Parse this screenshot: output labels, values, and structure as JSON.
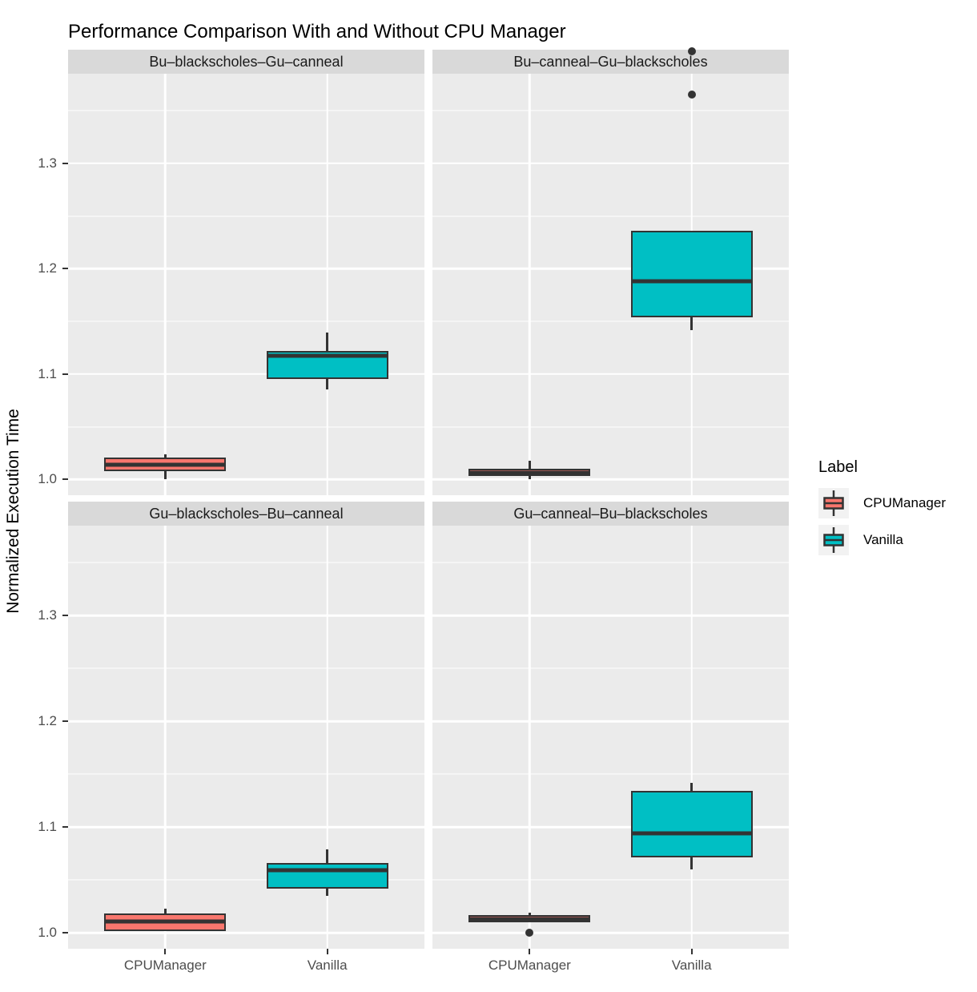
{
  "title": "Performance Comparison With and Without CPU Manager",
  "y_axis_title": "Normalized Execution Time",
  "legend": {
    "title": "Label",
    "items": [
      {
        "label": "CPUManager"
      },
      {
        "label": "Vanilla"
      }
    ]
  },
  "colors": {
    "cpumanager": "#F8766D",
    "vanilla": "#00BFC4",
    "panel_bg": "#EBEBEB",
    "strip_bg": "#D9D9D9",
    "gridline": "#FFFFFF",
    "box_border": "#333333",
    "axis_text": "#4D4D4D",
    "legend_key_bg": "#F2F2F2"
  },
  "chart_data": {
    "type": "boxplot",
    "title": "Performance Comparison With and Without CPU Manager",
    "ylabel": "Normalized Execution Time",
    "xlabel": "",
    "x_categories": [
      "CPUManager",
      "Vanilla"
    ],
    "y_ticks": [
      1.0,
      1.1,
      1.2,
      1.3
    ],
    "y_minor_ticks": [
      1.05,
      1.15,
      1.25,
      1.35
    ],
    "ylim": [
      0.985,
      1.385
    ],
    "grid": "on",
    "legend_position": "right",
    "series": [
      {
        "name": "CPUManager",
        "color": "#F8766D"
      },
      {
        "name": "Vanilla",
        "color": "#00BFC4"
      }
    ],
    "facets": [
      {
        "label": "Bu–blackscholes–Gu–canneal",
        "boxes": [
          {
            "group": "CPUManager",
            "whisker_low": 1.0,
            "q1": 1.008,
            "median": 1.014,
            "q3": 1.021,
            "whisker_high": 1.024,
            "outliers": []
          },
          {
            "group": "Vanilla",
            "whisker_low": 1.085,
            "q1": 1.095,
            "median": 1.117,
            "q3": 1.122,
            "whisker_high": 1.139,
            "outliers": []
          }
        ]
      },
      {
        "label": "Bu–canneal–Gu–blackscholes",
        "boxes": [
          {
            "group": "CPUManager",
            "whisker_low": 1.0,
            "q1": 1.003,
            "median": 1.006,
            "q3": 1.01,
            "whisker_high": 1.018,
            "outliers": []
          },
          {
            "group": "Vanilla",
            "whisker_low": 1.142,
            "q1": 1.154,
            "median": 1.188,
            "q3": 1.236,
            "whisker_high": 1.236,
            "outliers": [
              1.365,
              1.406
            ]
          }
        ]
      },
      {
        "label": "Gu–blackscholes–Bu–canneal",
        "boxes": [
          {
            "group": "CPUManager",
            "whisker_low": 1.002,
            "q1": 1.002,
            "median": 1.011,
            "q3": 1.018,
            "whisker_high": 1.023,
            "outliers": []
          },
          {
            "group": "Vanilla",
            "whisker_low": 1.035,
            "q1": 1.042,
            "median": 1.059,
            "q3": 1.066,
            "whisker_high": 1.079,
            "outliers": []
          }
        ]
      },
      {
        "label": "Gu–canneal–Bu–blackscholes",
        "boxes": [
          {
            "group": "CPUManager",
            "whisker_low": 1.01,
            "q1": 1.01,
            "median": 1.013,
            "q3": 1.017,
            "whisker_high": 1.019,
            "outliers": [
              1.0
            ]
          },
          {
            "group": "Vanilla",
            "whisker_low": 1.06,
            "q1": 1.071,
            "median": 1.094,
            "q3": 1.134,
            "whisker_high": 1.142,
            "outliers": []
          }
        ]
      }
    ]
  }
}
